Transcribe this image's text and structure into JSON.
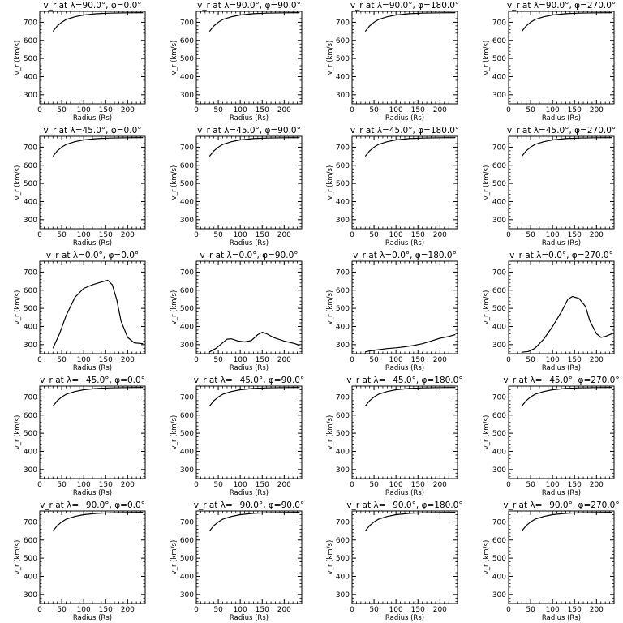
{
  "chart_data": {
    "type": "line",
    "xlabel": "Radius (Rs)",
    "ylabel": "v_r (km/s)",
    "xlim": [
      0,
      240
    ],
    "ylim": [
      250,
      760
    ],
    "xticks": [
      "0",
      "50",
      "100",
      "150",
      "200"
    ],
    "yticks": [
      "300",
      "400",
      "500",
      "600",
      "700"
    ],
    "grid": false,
    "panels": [
      {
        "title": "v_r at λ=90.0°, φ=0.0°",
        "x": [
          30,
          40,
          50,
          60,
          80,
          100,
          130,
          160,
          200,
          235
        ],
        "y": [
          650,
          680,
          700,
          715,
          730,
          740,
          747,
          750,
          752,
          753
        ]
      },
      {
        "title": "v_r at λ=90.0°, φ=90.0°",
        "x": [
          30,
          40,
          50,
          60,
          80,
          100,
          130,
          160,
          200,
          235
        ],
        "y": [
          650,
          680,
          700,
          715,
          730,
          740,
          747,
          750,
          752,
          753
        ]
      },
      {
        "title": "v_r at λ=90.0°, φ=180.0°",
        "x": [
          30,
          40,
          50,
          60,
          80,
          100,
          130,
          160,
          200,
          235
        ],
        "y": [
          650,
          680,
          700,
          715,
          730,
          740,
          747,
          750,
          752,
          753
        ]
      },
      {
        "title": "v_r at λ=90.0°, φ=270.0°",
        "x": [
          30,
          40,
          50,
          60,
          80,
          100,
          130,
          160,
          200,
          235
        ],
        "y": [
          650,
          680,
          700,
          715,
          730,
          740,
          747,
          750,
          752,
          753
        ]
      },
      {
        "title": "v_r at λ=45.0°, φ=0.0°",
        "x": [
          30,
          40,
          50,
          60,
          80,
          100,
          130,
          160,
          200,
          235
        ],
        "y": [
          650,
          680,
          700,
          715,
          730,
          740,
          747,
          750,
          752,
          753
        ]
      },
      {
        "title": "v_r at λ=45.0°, φ=90.0°",
        "x": [
          30,
          40,
          50,
          60,
          80,
          100,
          130,
          160,
          200,
          235
        ],
        "y": [
          650,
          680,
          700,
          715,
          730,
          740,
          747,
          750,
          752,
          753
        ]
      },
      {
        "title": "v_r at λ=45.0°, φ=180.0°",
        "x": [
          30,
          40,
          50,
          60,
          80,
          100,
          130,
          160,
          200,
          235
        ],
        "y": [
          650,
          680,
          700,
          715,
          730,
          740,
          747,
          750,
          752,
          753
        ]
      },
      {
        "title": "v_r at λ=45.0°, φ=270.0°",
        "x": [
          30,
          40,
          50,
          60,
          80,
          100,
          130,
          160,
          200,
          235
        ],
        "y": [
          650,
          680,
          700,
          715,
          730,
          740,
          747,
          750,
          752,
          753
        ]
      },
      {
        "title": "v_r at λ=0.0°, φ=0.0°",
        "x": [
          30,
          45,
          60,
          80,
          100,
          120,
          140,
          155,
          165,
          175,
          185,
          200,
          215,
          235
        ],
        "y": [
          280,
          360,
          460,
          560,
          610,
          630,
          645,
          655,
          630,
          550,
          430,
          340,
          310,
          305
        ]
      },
      {
        "title": "v_r at λ=0.0°, φ=90.0°",
        "x": [
          30,
          45,
          60,
          70,
          80,
          95,
          110,
          125,
          140,
          150,
          160,
          175,
          200,
          225,
          235
        ],
        "y": [
          260,
          280,
          310,
          330,
          332,
          320,
          315,
          322,
          355,
          368,
          360,
          340,
          320,
          305,
          295
        ]
      },
      {
        "title": "v_r at λ=0.0°, φ=180.0°",
        "x": [
          30,
          40,
          60,
          80,
          100,
          120,
          140,
          160,
          180,
          200,
          220,
          235
        ],
        "y": [
          260,
          265,
          272,
          278,
          282,
          288,
          295,
          305,
          320,
          335,
          345,
          355
        ]
      },
      {
        "title": "v_r at λ=0.0°, φ=270.0°",
        "x": [
          30,
          45,
          60,
          80,
          100,
          120,
          135,
          145,
          160,
          175,
          185,
          200,
          210,
          220,
          235
        ],
        "y": [
          258,
          262,
          280,
          330,
          400,
          480,
          550,
          565,
          555,
          510,
          430,
          360,
          340,
          345,
          360
        ]
      },
      {
        "title": "v_r at λ=−45.0°, φ=0.0°",
        "x": [
          30,
          40,
          50,
          60,
          80,
          100,
          130,
          160,
          200,
          235
        ],
        "y": [
          650,
          680,
          700,
          715,
          730,
          740,
          747,
          750,
          752,
          753
        ]
      },
      {
        "title": "v_r at λ=−45.0°, φ=90.0°",
        "x": [
          30,
          40,
          50,
          60,
          80,
          100,
          130,
          160,
          200,
          235
        ],
        "y": [
          650,
          680,
          700,
          715,
          730,
          740,
          747,
          750,
          752,
          753
        ]
      },
      {
        "title": "v_r at λ=−45.0°, φ=180.0°",
        "x": [
          30,
          40,
          50,
          60,
          80,
          100,
          130,
          160,
          200,
          235
        ],
        "y": [
          650,
          680,
          700,
          715,
          730,
          740,
          747,
          750,
          752,
          753
        ]
      },
      {
        "title": "v_r at λ=−45.0°, φ=270.0°",
        "x": [
          30,
          40,
          50,
          60,
          80,
          100,
          130,
          160,
          200,
          235
        ],
        "y": [
          650,
          680,
          700,
          715,
          730,
          740,
          747,
          750,
          752,
          753
        ]
      },
      {
        "title": "v_r at λ=−90.0°, φ=0.0°",
        "x": [
          30,
          40,
          50,
          60,
          80,
          100,
          130,
          160,
          200,
          235
        ],
        "y": [
          650,
          680,
          700,
          715,
          730,
          740,
          747,
          750,
          752,
          753
        ]
      },
      {
        "title": "v_r at λ=−90.0°, φ=90.0°",
        "x": [
          30,
          40,
          50,
          60,
          80,
          100,
          130,
          160,
          200,
          235
        ],
        "y": [
          650,
          680,
          700,
          715,
          730,
          740,
          747,
          750,
          752,
          753
        ]
      },
      {
        "title": "v_r at λ=−90.0°, φ=180.0°",
        "x": [
          30,
          40,
          50,
          60,
          80,
          100,
          130,
          160,
          200,
          235
        ],
        "y": [
          650,
          680,
          700,
          715,
          730,
          740,
          747,
          750,
          752,
          753
        ]
      },
      {
        "title": "v_r at λ=−90.0°, φ=270.0°",
        "x": [
          30,
          40,
          50,
          60,
          80,
          100,
          130,
          160,
          200,
          235
        ],
        "y": [
          650,
          680,
          700,
          715,
          730,
          740,
          747,
          750,
          752,
          753
        ]
      }
    ]
  }
}
